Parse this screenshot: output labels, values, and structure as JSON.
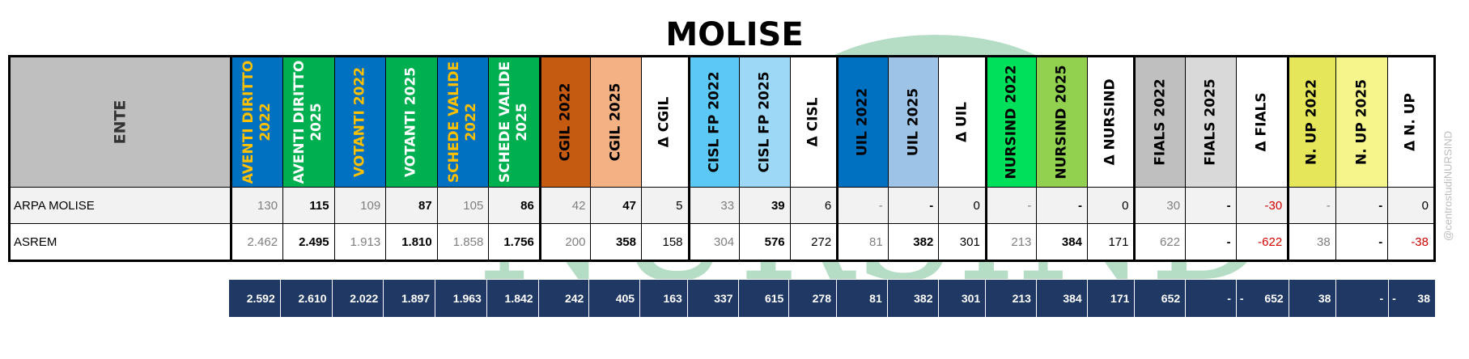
{
  "title": "MOLISE",
  "side_watermark": "@centrostudiNURSIND",
  "watermark": "NURSIND",
  "columns": [
    {
      "label": "ENTE",
      "bg": "#bfbfbf",
      "fg": "#333333"
    },
    {
      "label": "AVENTI DIRITTO\n2022",
      "bg": "#0070c0",
      "fg": "#ffc000"
    },
    {
      "label": "AVENTI DIRITTO\n2025",
      "bg": "#00b050",
      "fg": "#ffffff"
    },
    {
      "label": "VOTANTI 2022",
      "bg": "#0070c0",
      "fg": "#ffc000"
    },
    {
      "label": "VOTANTI 2025",
      "bg": "#00b050",
      "fg": "#ffffff"
    },
    {
      "label": "SCHEDE VALIDE\n2022",
      "bg": "#0070c0",
      "fg": "#ffc000"
    },
    {
      "label": "SCHEDE VALIDE\n2025",
      "bg": "#00b050",
      "fg": "#ffffff"
    },
    {
      "label": "CGIL 2022",
      "bg": "#c55a11",
      "fg": "#000000"
    },
    {
      "label": "CGIL 2025",
      "bg": "#f4b183",
      "fg": "#000000"
    },
    {
      "label": "Δ CGIL",
      "bg": "#ffffff",
      "fg": "#000000"
    },
    {
      "label": "CISL FP 2022",
      "bg": "#5bc8f5",
      "fg": "#000000"
    },
    {
      "label": "CISL FP 2025",
      "bg": "#9dd9f7",
      "fg": "#000000"
    },
    {
      "label": "Δ CISL",
      "bg": "#ffffff",
      "fg": "#000000"
    },
    {
      "label": "UIL 2022",
      "bg": "#0070c0",
      "fg": "#000000"
    },
    {
      "label": "UIL 2025",
      "bg": "#9dc3e6",
      "fg": "#000000"
    },
    {
      "label": "Δ UIL",
      "bg": "#ffffff",
      "fg": "#000000"
    },
    {
      "label": "NURSIND 2022",
      "bg": "#00e05a",
      "fg": "#000000"
    },
    {
      "label": "NURSIND 2025",
      "bg": "#92d050",
      "fg": "#000000"
    },
    {
      "label": "Δ NURSIND",
      "bg": "#ffffff",
      "fg": "#000000"
    },
    {
      "label": "FIALS 2022",
      "bg": "#bfbfbf",
      "fg": "#000000"
    },
    {
      "label": "FIALS 2025",
      "bg": "#d9d9d9",
      "fg": "#000000"
    },
    {
      "label": "Δ FIALS",
      "bg": "#ffffff",
      "fg": "#000000"
    },
    {
      "label": "N. UP 2022",
      "bg": "#e6e65a",
      "fg": "#000000"
    },
    {
      "label": "N. UP 2025",
      "bg": "#f5f58c",
      "fg": "#000000"
    },
    {
      "label": "Δ N. UP",
      "bg": "#ffffff",
      "fg": "#000000"
    }
  ],
  "rows": [
    {
      "name": "ARPA MOLISE",
      "cells": [
        "130",
        "115",
        "109",
        "87",
        "105",
        "86",
        "42",
        "47",
        "5",
        "33",
        "39",
        "6",
        "-",
        "-",
        "0",
        "-",
        "-",
        "0",
        "30",
        "-",
        "-30",
        "-",
        "-",
        "0"
      ]
    },
    {
      "name": "ASREM",
      "cells": [
        "2.462",
        "2.495",
        "1.913",
        "1.810",
        "1.858",
        "1.756",
        "200",
        "358",
        "158",
        "304",
        "576",
        "272",
        "81",
        "382",
        "301",
        "213",
        "384",
        "171",
        "622",
        "-",
        "-622",
        "38",
        "-",
        "-38"
      ]
    }
  ],
  "totals": [
    "2.592",
    "2.610",
    "2.022",
    "1.897",
    "1.963",
    "1.842",
    "242",
    "405",
    "163",
    "337",
    "615",
    "278",
    "81",
    "382",
    "301",
    "213",
    "384",
    "171",
    "652",
    "-",
    "652",
    "38",
    "-",
    "38"
  ],
  "totals_lead": [
    "",
    "",
    "",
    "",
    "",
    "",
    "",
    "",
    "",
    "",
    "",
    "",
    "",
    "",
    "",
    "",
    "",
    "",
    "",
    "",
    "-",
    "",
    "",
    "-"
  ]
}
